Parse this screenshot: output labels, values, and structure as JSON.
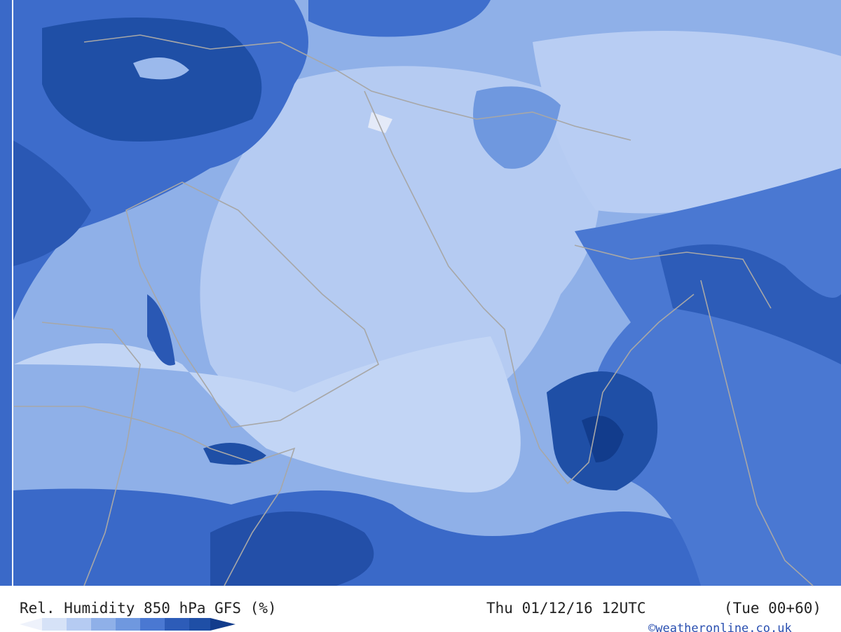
{
  "footer": {
    "title": "Rel. Humidity 850 hPa GFS (%)",
    "valid_time": "Thu 01/12/16 12UTC",
    "run": "(Tue 00+60)",
    "credit": "©weatheronline.co.uk"
  }
}
